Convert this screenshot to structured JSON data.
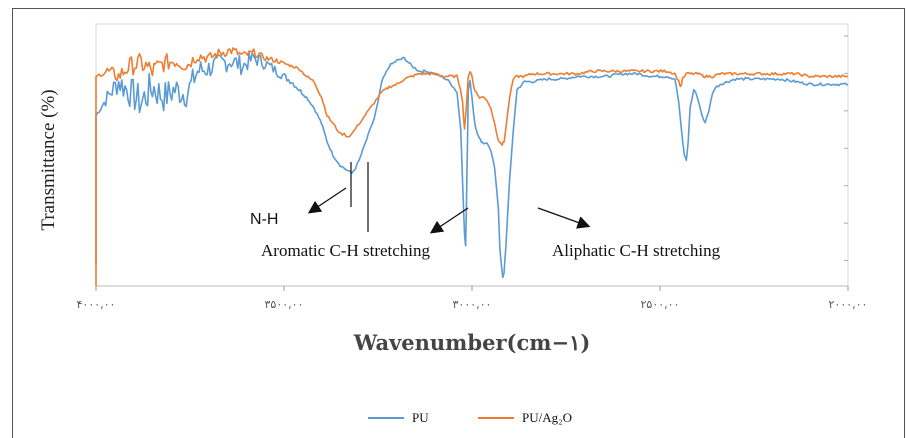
{
  "chart_data": {
    "type": "line",
    "ylabel": "Transmittance (%)",
    "xlabel": "Wavenumber(cm−١)",
    "x_ticks": [
      "۴۰۰۰,۰۰",
      "۳۵۰۰,۰۰",
      "۳۰۰۰,۰۰",
      "۲۵۰۰,۰۰",
      "۲۰۰۰,۰۰"
    ],
    "x_tick_values": [
      4000,
      3500,
      3000,
      2500,
      2000
    ],
    "xlim": [
      4000,
      2000
    ],
    "ylim": [
      0,
      100
    ],
    "grid": false,
    "legend_position": "bottom",
    "colors": {
      "PU": "#5b9bd5",
      "PU/Ag2O": "#ed7d31"
    },
    "series": [
      {
        "name": "PU",
        "x": [
          4000,
          3970,
          3940,
          3910,
          3880,
          3850,
          3820,
          3790,
          3760,
          3730,
          3700,
          3670,
          3640,
          3610,
          3580,
          3550,
          3520,
          3500,
          3480,
          3460,
          3440,
          3420,
          3400,
          3385,
          3370,
          3360,
          3350,
          3340,
          3330,
          3320,
          3310,
          3300,
          3290,
          3280,
          3270,
          3260,
          3250,
          3240,
          3220,
          3200,
          3180,
          3160,
          3140,
          3120,
          3100,
          3080,
          3060,
          3040,
          3030,
          3025,
          3020,
          3017,
          3015,
          3012,
          3010,
          3005,
          3000,
          2995,
          2990,
          2985,
          2980,
          2975,
          2970,
          2960,
          2950,
          2940,
          2930,
          2926,
          2922,
          2918,
          2915,
          2910,
          2900,
          2890,
          2880,
          2860,
          2840,
          2800,
          2760,
          2720,
          2680,
          2640,
          2600,
          2560,
          2520,
          2480,
          2460,
          2450,
          2440,
          2435,
          2430,
          2425,
          2420,
          2410,
          2400,
          2390,
          2380,
          2370,
          2360,
          2350,
          2340,
          2320,
          2300,
          2260,
          2220,
          2180,
          2140,
          2100,
          2060,
          2020,
          2000
        ],
        "y": [
          65,
          72,
          78,
          74,
          70,
          76,
          72,
          75,
          73,
          82,
          83,
          85,
          86,
          84,
          87,
          85,
          82,
          80,
          78,
          75,
          72,
          68,
          62,
          55,
          50,
          48,
          46,
          45,
          44,
          43,
          45,
          48,
          52,
          56,
          60,
          64,
          70,
          78,
          84,
          86,
          87,
          84,
          82,
          82,
          81,
          80,
          78,
          74,
          60,
          40,
          20,
          15,
          30,
          55,
          75,
          78,
          72,
          65,
          60,
          58,
          56,
          55,
          54,
          55,
          52,
          45,
          30,
          15,
          8,
          3,
          5,
          15,
          40,
          60,
          75,
          78,
          78,
          79,
          79,
          80,
          80,
          80,
          81,
          81,
          80,
          80,
          79,
          70,
          55,
          50,
          48,
          55,
          68,
          75,
          72,
          66,
          62,
          67,
          74,
          76,
          77,
          78,
          79,
          79,
          79,
          79,
          78,
          77,
          77,
          77,
          77
        ],
        "noise": [
          0,
          6,
          10,
          12,
          14,
          14,
          12,
          12,
          10,
          10,
          8,
          8,
          8,
          7,
          6,
          5,
          4,
          3,
          2,
          2,
          1,
          1,
          1,
          1,
          1,
          1,
          1,
          1,
          1,
          1,
          1,
          1,
          1,
          1,
          1,
          1,
          1,
          1,
          1,
          1,
          1,
          1,
          1,
          1,
          1,
          1,
          1,
          1,
          1,
          1,
          1,
          1,
          1,
          1,
          1,
          1,
          1,
          1,
          1,
          1,
          1,
          1,
          1,
          1,
          1,
          1,
          1,
          1,
          1,
          1,
          1,
          1,
          1,
          1,
          1,
          1,
          1,
          1,
          1,
          1,
          1,
          1,
          1,
          1,
          1,
          1,
          1,
          1,
          1,
          1,
          1,
          1,
          1,
          1,
          1,
          1,
          1,
          1,
          1,
          1,
          1,
          1,
          1,
          1,
          1,
          1,
          1,
          1,
          1,
          1,
          1
        ]
      },
      {
        "name": "PU/Ag2O",
        "x": [
          4000,
          3970,
          3940,
          3910,
          3880,
          3850,
          3820,
          3790,
          3760,
          3730,
          3700,
          3670,
          3640,
          3610,
          3580,
          3550,
          3520,
          3500,
          3480,
          3460,
          3440,
          3420,
          3400,
          3385,
          3370,
          3360,
          3350,
          3340,
          3330,
          3320,
          3310,
          3300,
          3290,
          3280,
          3270,
          3260,
          3250,
          3240,
          3220,
          3200,
          3180,
          3160,
          3140,
          3120,
          3100,
          3080,
          3060,
          3040,
          3030,
          3025,
          3020,
          3015,
          3010,
          3005,
          3000,
          2995,
          2990,
          2980,
          2970,
          2960,
          2950,
          2940,
          2930,
          2920,
          2915,
          2910,
          2900,
          2890,
          2880,
          2860,
          2840,
          2800,
          2760,
          2720,
          2680,
          2640,
          2600,
          2560,
          2520,
          2480,
          2460,
          2450,
          2445,
          2440,
          2430,
          2420,
          2400,
          2380,
          2360,
          2340,
          2320,
          2300,
          2260,
          2220,
          2180,
          2140,
          2100,
          2060,
          2020,
          2000
        ],
        "y": [
          80,
          82,
          80,
          84,
          85,
          82,
          85,
          86,
          84,
          88,
          87,
          89,
          90,
          88,
          89,
          87,
          86,
          85,
          84,
          83,
          80,
          78,
          72,
          65,
          62,
          60,
          58,
          58,
          57,
          58,
          60,
          62,
          64,
          66,
          68,
          70,
          72,
          74,
          76,
          77,
          79,
          80,
          81,
          81,
          81,
          80,
          80,
          80,
          75,
          70,
          60,
          68,
          80,
          82,
          80,
          76,
          74,
          72,
          72,
          71,
          68,
          62,
          56,
          54,
          55,
          60,
          72,
          79,
          80,
          80,
          81,
          81,
          81,
          81,
          82,
          82,
          82,
          82,
          82,
          82,
          81,
          78,
          76,
          79,
          81,
          81,
          81,
          80,
          80,
          81,
          81,
          81,
          81,
          81,
          81,
          81,
          80,
          80,
          80,
          80
        ],
        "noise": [
          0,
          4,
          6,
          7,
          8,
          8,
          7,
          6,
          5,
          5,
          4,
          4,
          4,
          3,
          3,
          2,
          2,
          1,
          1,
          1,
          1,
          1,
          1,
          1,
          1,
          1,
          1,
          1,
          1,
          1,
          1,
          1,
          1,
          1,
          1,
          1,
          1,
          1,
          1,
          1,
          1,
          1,
          1,
          1,
          1,
          1,
          1,
          1,
          1,
          1,
          1,
          1,
          1,
          1,
          1,
          1,
          1,
          1,
          1,
          1,
          1,
          1,
          1,
          1,
          1,
          1,
          1,
          1,
          1,
          1,
          1,
          1,
          1,
          1,
          1,
          1,
          1,
          1,
          1,
          1,
          1,
          1,
          1,
          1,
          1,
          1,
          1,
          1,
          1,
          1,
          1,
          1,
          1,
          1,
          1,
          1,
          1,
          1,
          1,
          1
        ]
      }
    ],
    "annotations": [
      {
        "text": "N-H",
        "x": 3370
      },
      {
        "text": "Aromatic C-H stretching",
        "x": 3000
      },
      {
        "text": "Aliphatic C-H stretching",
        "x": 2880
      }
    ],
    "legend": [
      {
        "label": "PU",
        "color": "#5b9bd5"
      },
      {
        "label": "PU/Ag₂O",
        "color": "#ed7d31"
      }
    ]
  }
}
